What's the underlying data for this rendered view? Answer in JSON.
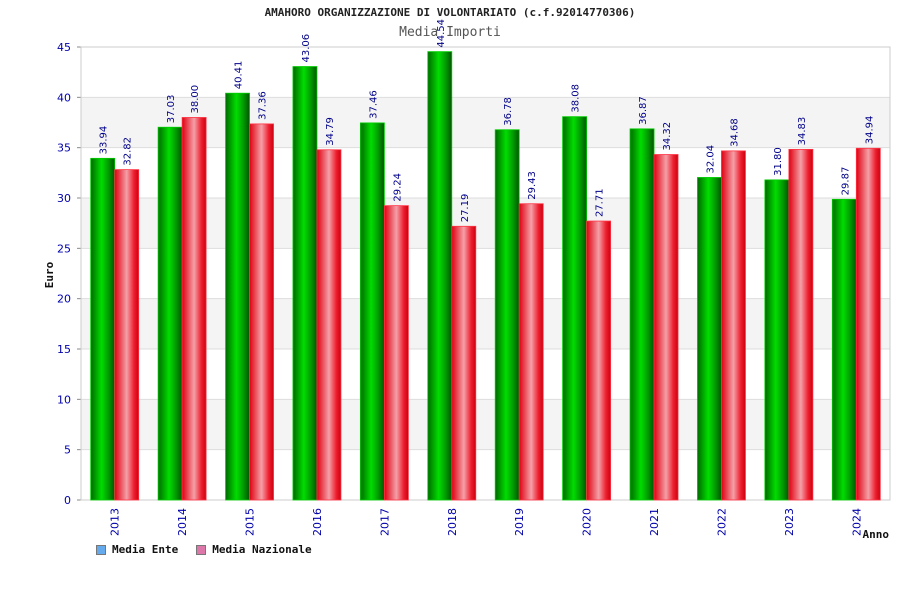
{
  "chart_data": {
    "type": "bar",
    "title": "AMAHORO ORGANIZZAZIONE DI VOLONTARIATO (c.f.92014770306)",
    "subtitle": "Media Importi",
    "xlabel": "Anno",
    "ylabel": "Euro",
    "ylim": [
      0,
      45
    ],
    "yticks": [
      "0",
      "5",
      "10",
      "15",
      "20",
      "25",
      "30",
      "35",
      "40",
      "45"
    ],
    "categories": [
      "2013",
      "2014",
      "2015",
      "2016",
      "2017",
      "2018",
      "2019",
      "2020",
      "2021",
      "2022",
      "2023",
      "2024"
    ],
    "series": [
      {
        "name": "Media Ente",
        "values": [
          33.94,
          37.03,
          40.41,
          43.06,
          37.46,
          44.54,
          36.78,
          38.08,
          36.87,
          32.04,
          31.8,
          29.87
        ],
        "labels": [
          "33.94",
          "37.03",
          "40.41",
          "43.06",
          "37.46",
          "44.54",
          "36.78",
          "38.08",
          "36.87",
          "32.04",
          "31.80",
          "29.87"
        ],
        "color": "#00aa00",
        "legend_color": "#66aaee"
      },
      {
        "name": "Media Nazionale",
        "values": [
          32.82,
          38.0,
          37.36,
          34.79,
          29.24,
          27.19,
          29.43,
          27.71,
          34.32,
          34.68,
          34.83,
          34.94
        ],
        "labels": [
          "32.82",
          "38.00",
          "37.36",
          "34.79",
          "29.24",
          "27.19",
          "29.43",
          "27.71",
          "34.32",
          "34.68",
          "34.83",
          "34.94"
        ],
        "color": "#ee1122",
        "legend_color": "#dd77aa"
      }
    ],
    "grid": true,
    "legend_position": "bottom-left"
  }
}
